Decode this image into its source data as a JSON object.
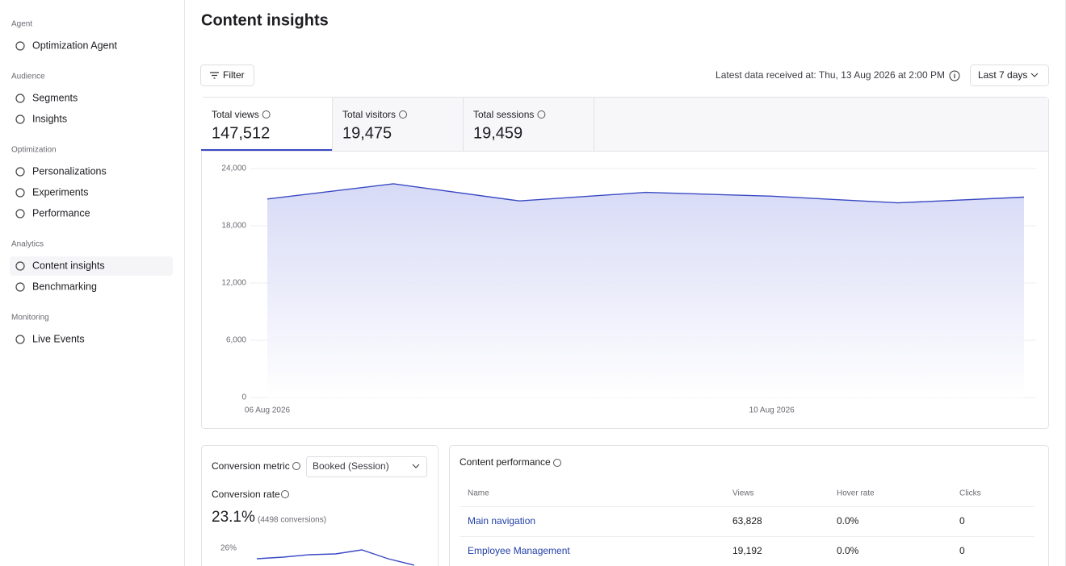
{
  "sidebar": {
    "sections": [
      {
        "title": "Agent",
        "items": [
          {
            "label": "Optimization Agent"
          }
        ]
      },
      {
        "title": "Audience",
        "items": [
          {
            "label": "Segments"
          },
          {
            "label": "Insights"
          }
        ]
      },
      {
        "title": "Optimization",
        "items": [
          {
            "label": "Personalizations"
          },
          {
            "label": "Experiments"
          },
          {
            "label": "Performance"
          }
        ]
      },
      {
        "title": "Analytics",
        "items": [
          {
            "label": "Content insights",
            "active": true
          },
          {
            "label": "Benchmarking"
          }
        ]
      },
      {
        "title": "Monitoring",
        "items": [
          {
            "label": "Live Events"
          }
        ]
      }
    ]
  },
  "header": {
    "title": "Content insights",
    "filter": "Filter",
    "latest_data": "Latest data received at: Thu, 13 Aug 2026 at 2:00 PM",
    "range": "Last 7 days"
  },
  "metrics": [
    {
      "label": "Total views",
      "value": "147,512",
      "active": true
    },
    {
      "label": "Total visitors",
      "value": "19,475"
    },
    {
      "label": "Total sessions",
      "value": "19,459"
    }
  ],
  "chart_data": [
    {
      "type": "area",
      "categories": [
        "06 Aug 2026",
        null,
        null,
        null,
        "10 Aug 2026",
        null,
        null
      ],
      "series": [
        {
          "name": "Total views",
          "color": "#3949c4",
          "values": [
            20800,
            22400,
            20600,
            21500,
            21100,
            20400,
            21000
          ]
        }
      ],
      "ylim": [
        0,
        24000
      ],
      "yticks": [
        0,
        {
          "value": 6000,
          "label": "6,000"
        },
        {
          "value": 12000,
          "label": "12,000"
        },
        {
          "value": 18000,
          "label": "18,000"
        },
        {
          "value": 24000,
          "label": "24,000"
        }
      ],
      "grid": true
    },
    {
      "type": "line",
      "series": [
        {
          "name": "Conversion rate",
          "color": "#3949c4",
          "values": [
            24.7,
            24.9,
            25.2,
            25.3,
            25.8,
            24.7,
            23.9
          ]
        }
      ],
      "ylim": [
        20,
        26
      ],
      "yticks": [
        {
          "value": 26,
          "label": "26%"
        }
      ]
    }
  ],
  "conversion": {
    "metric_label": "Conversion metric",
    "metric_select": "Booked (Session)",
    "rate_label": "Conversion rate",
    "rate": "23.1%",
    "conversions": "(4498 conversions)"
  },
  "content_performance": {
    "title": "Content performance",
    "columns": [
      "Name",
      "Views",
      "Hover rate",
      "Clicks"
    ],
    "rows": [
      [
        "Main navigation",
        "63,828",
        "0.0%",
        "0"
      ],
      [
        "Employee Management",
        "19,192",
        "0.0%",
        "0"
      ]
    ]
  }
}
